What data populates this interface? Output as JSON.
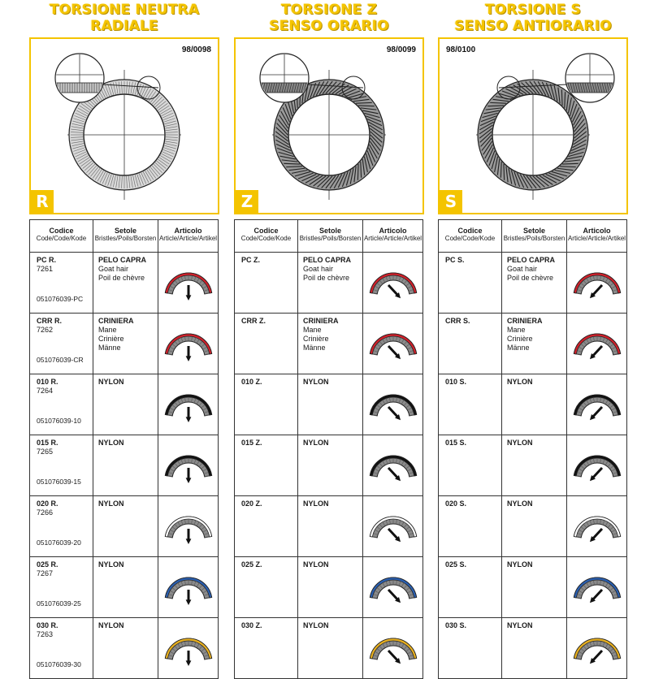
{
  "columns": [
    {
      "title": [
        "TORSIONE NEUTRA",
        "RADIALE"
      ],
      "code": "98/0098",
      "letter": "R",
      "variant": "radial",
      "label_side": "right",
      "headers": {
        "code": [
          "Codice",
          "Code/Code/Kode"
        ],
        "setole": [
          "Setole",
          "Bristles/Poils/Borsten"
        ],
        "articolo": [
          "Articolo",
          "Article/Article/Artikel"
        ]
      },
      "rows": [
        {
          "code": "PC R.",
          "num": "7261",
          "ref": "051076039-PC",
          "setole": [
            "PELO CAPRA",
            "Goat hair",
            "Poil de chèvre"
          ],
          "color": "#d0202a"
        },
        {
          "code": "CRR R.",
          "num": "7262",
          "ref": "051076039-CR",
          "setole": [
            "CRINIERA",
            "Mane",
            "Crinière",
            "Männe"
          ],
          "color": "#d0202a"
        },
        {
          "code": "010 R.",
          "num": "7264",
          "ref": "051076039-10",
          "setole": [
            "NYLON"
          ],
          "color": "#111111"
        },
        {
          "code": "015 R.",
          "num": "7265",
          "ref": "051076039-15",
          "setole": [
            "NYLON"
          ],
          "color": "#111111"
        },
        {
          "code": "020 R.",
          "num": "7266",
          "ref": "051076039-20",
          "setole": [
            "NYLON"
          ],
          "color": "#ffffff"
        },
        {
          "code": "025 R.",
          "num": "7267",
          "ref": "051076039-25",
          "setole": [
            "NYLON"
          ],
          "color": "#2a5fb0"
        },
        {
          "code": "030 R.",
          "num": "7263",
          "ref": "051076039-30",
          "setole": [
            "NYLON"
          ],
          "color": "#e8b020"
        }
      ]
    },
    {
      "title": [
        "TORSIONE Z",
        "SENSO ORARIO"
      ],
      "code": "98/0099",
      "letter": "Z",
      "variant": "z",
      "label_side": "right",
      "headers": {
        "code": [
          "Codice",
          "Code/Code/Kode"
        ],
        "setole": [
          "Setole",
          "Bristles/Poils/Borsten"
        ],
        "articolo": [
          "Articolo",
          "Article/Article/Artikel"
        ]
      },
      "rows": [
        {
          "code": "PC Z.",
          "num": "",
          "ref": "",
          "setole": [
            "PELO CAPRA",
            "Goat hair",
            "Poil de chèvre"
          ],
          "color": "#d0202a"
        },
        {
          "code": "CRR Z.",
          "num": "",
          "ref": "",
          "setole": [
            "CRINIERA",
            "Mane",
            "Crinière",
            "Männe"
          ],
          "color": "#d0202a"
        },
        {
          "code": "010 Z.",
          "num": "",
          "ref": "",
          "setole": [
            "NYLON"
          ],
          "color": "#111111"
        },
        {
          "code": "015 Z.",
          "num": "",
          "ref": "",
          "setole": [
            "NYLON"
          ],
          "color": "#111111"
        },
        {
          "code": "020 Z.",
          "num": "",
          "ref": "",
          "setole": [
            "NYLON"
          ],
          "color": "#ffffff"
        },
        {
          "code": "025 Z.",
          "num": "",
          "ref": "",
          "setole": [
            "NYLON"
          ],
          "color": "#2a5fb0"
        },
        {
          "code": "030 Z.",
          "num": "",
          "ref": "",
          "setole": [
            "NYLON"
          ],
          "color": "#e8b020"
        }
      ]
    },
    {
      "title": [
        "TORSIONE S",
        "SENSO ANTIORARIO"
      ],
      "code": "98/0100",
      "letter": "S",
      "variant": "s",
      "label_side": "left",
      "headers": {
        "code": [
          "Codice",
          "Code/Code/Kode"
        ],
        "setole": [
          "Setole",
          "Bristles/Poils/Borsten"
        ],
        "articolo": [
          "Articolo",
          "Article/Article/Artikel"
        ]
      },
      "rows": [
        {
          "code": "PC S.",
          "num": "",
          "ref": "",
          "setole": [
            "PELO CAPRA",
            "Goat hair",
            "Poil de chèvre"
          ],
          "color": "#d0202a"
        },
        {
          "code": "CRR S.",
          "num": "",
          "ref": "",
          "setole": [
            "CRINIERA",
            "Mane",
            "Crinière",
            "Männe"
          ],
          "color": "#d0202a"
        },
        {
          "code": "010 S.",
          "num": "",
          "ref": "",
          "setole": [
            "NYLON"
          ],
          "color": "#111111"
        },
        {
          "code": "015 S.",
          "num": "",
          "ref": "",
          "setole": [
            "NYLON"
          ],
          "color": "#111111"
        },
        {
          "code": "020 S.",
          "num": "",
          "ref": "",
          "setole": [
            "NYLON"
          ],
          "color": "#ffffff"
        },
        {
          "code": "025 S.",
          "num": "",
          "ref": "",
          "setole": [
            "NYLON"
          ],
          "color": "#2a5fb0"
        },
        {
          "code": "030 S.",
          "num": "",
          "ref": "",
          "setole": [
            "NYLON"
          ],
          "color": "#e8b020"
        }
      ]
    }
  ],
  "colors": {
    "accent": "#f4c400",
    "line": "#333333"
  }
}
